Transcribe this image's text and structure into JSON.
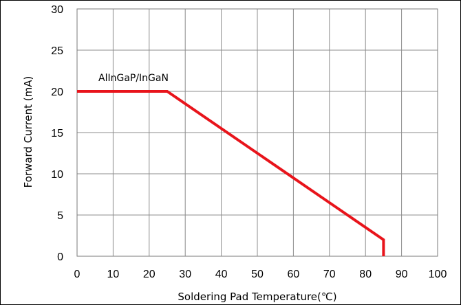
{
  "chart_data": {
    "type": "line",
    "title": "",
    "xlabel": "Soldering Pad Temperature(℃)",
    "ylabel": "Forward Current (mA)",
    "xlim": [
      0,
      100
    ],
    "ylim": [
      0,
      30
    ],
    "x_ticks": [
      "0",
      "10",
      "20",
      "30",
      "40",
      "50",
      "60",
      "70",
      "80",
      "90",
      "100"
    ],
    "y_ticks": [
      "0",
      "5",
      "10",
      "15",
      "20",
      "25",
      "30"
    ],
    "grid": true,
    "annotations": [
      {
        "text": "AlInGaP/InGaN"
      }
    ],
    "series": [
      {
        "color": "#e8141b",
        "x": [
          0,
          25,
          85,
          85
        ],
        "y": [
          20,
          20,
          2,
          0
        ]
      }
    ]
  }
}
